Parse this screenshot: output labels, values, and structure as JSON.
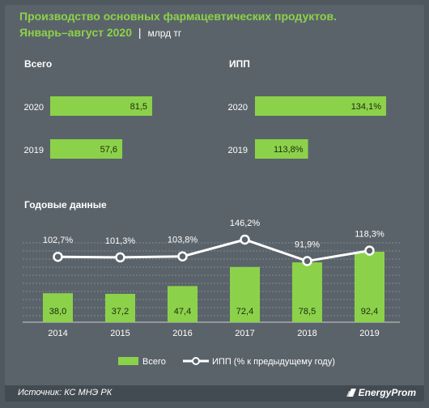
{
  "header": {
    "title_line1": "Производство основных фармацевтических продуктов.",
    "title_line2": "Январь–август 2020",
    "separator": "|",
    "unit": "млрд тг"
  },
  "colors": {
    "bar": "#8bd24a",
    "background": "#5b636a",
    "line": "#ffffff",
    "text": "#ffffff",
    "title": "#8bd24a"
  },
  "chart_data": [
    {
      "type": "bar",
      "orientation": "horizontal",
      "title": "Всего",
      "categories": [
        "2020",
        "2019"
      ],
      "values": [
        81.5,
        57.6
      ],
      "value_labels": [
        "81,5",
        "57,6"
      ]
    },
    {
      "type": "bar",
      "orientation": "horizontal",
      "title": "ИПП",
      "categories": [
        "2020",
        "2019"
      ],
      "values": [
        134.1,
        113.8
      ],
      "value_labels": [
        "134,1%",
        "113,8%"
      ]
    },
    {
      "type": "bar",
      "title": "Годовые данные",
      "categories": [
        "2014",
        "2015",
        "2016",
        "2017",
        "2018",
        "2019"
      ],
      "grid": true,
      "legend_position": "bottom",
      "series": [
        {
          "name": "Всего",
          "type": "bar",
          "values": [
            38.0,
            37.2,
            47.4,
            72.4,
            78.5,
            92.4
          ],
          "value_labels": [
            "38,0",
            "37,2",
            "47,4",
            "72,4",
            "78,5",
            "92,4"
          ]
        },
        {
          "name": "ИПП (% к предыдущему году)",
          "type": "line",
          "values": [
            102.7,
            101.3,
            103.8,
            146.2,
            91.9,
            118.3
          ],
          "value_labels": [
            "102,7%",
            "101,3%",
            "103,8%",
            "146,2%",
            "91,9%",
            "118,3%"
          ]
        }
      ]
    }
  ],
  "footer": {
    "source": "Источник: КС МНЭ РК",
    "brand": "EnergyProm"
  }
}
